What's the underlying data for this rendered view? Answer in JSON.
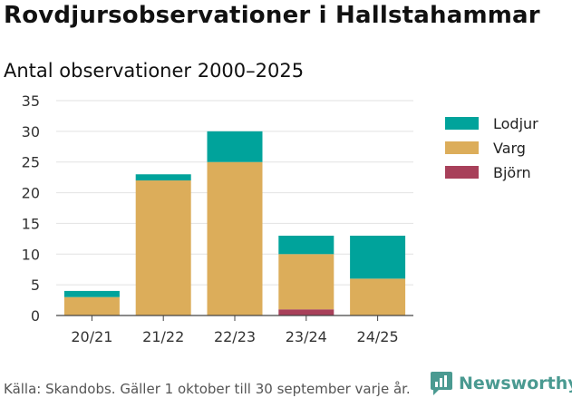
{
  "chart_data": {
    "type": "bar",
    "stacked": true,
    "title": "Rovdjursobservationer i Hallstahammar",
    "subtitle": "Antal observationer 2000–2025",
    "categories": [
      "20/21",
      "21/22",
      "22/23",
      "23/24",
      "24/25"
    ],
    "series": [
      {
        "name": "Björn",
        "color": "#a8405a",
        "values": [
          0,
          0,
          0,
          1,
          0
        ]
      },
      {
        "name": "Varg",
        "color": "#dcad5a",
        "values": [
          3,
          22,
          25,
          9,
          6
        ]
      },
      {
        "name": "Lodjur",
        "color": "#00a39b",
        "values": [
          1,
          1,
          5,
          3,
          7
        ]
      }
    ],
    "legend_order": [
      "Lodjur",
      "Varg",
      "Björn"
    ],
    "legend_position": "right",
    "ylim": [
      0,
      35
    ],
    "yticks": [
      0,
      5,
      10,
      15,
      20,
      25,
      30,
      35
    ],
    "xlabel": "",
    "ylabel": "",
    "grid": true
  },
  "footer": {
    "source": "Källa: Skandobs. Gäller 1 oktober till 30 september varje år.",
    "brand": "Newsworthy"
  }
}
